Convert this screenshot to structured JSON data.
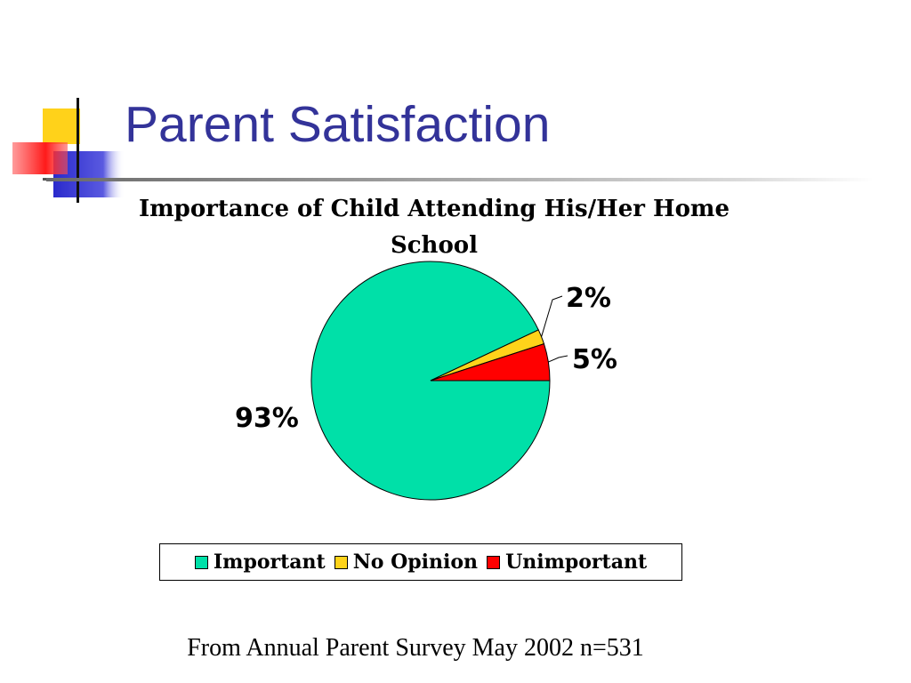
{
  "slide": {
    "title": "Parent Satisfaction",
    "footnote": "From Annual Parent Survey May 2002 n=531"
  },
  "colors": {
    "title": "#333399",
    "important": "#00E0A8",
    "no_opinion": "#FFD31A",
    "unimportant": "#FF0000"
  },
  "chart_data": {
    "type": "pie",
    "title": "Importance of Child Attending His/Her Home School",
    "categories": [
      "Important",
      "No Opinion",
      "Unimportant"
    ],
    "values": [
      93,
      2,
      5
    ],
    "value_labels": [
      "93%",
      "2%",
      "5%"
    ],
    "colors": [
      "#00E0A8",
      "#FFD31A",
      "#FF0000"
    ],
    "legend": {
      "position": "bottom",
      "entries": [
        "Important",
        "No Opinion",
        "Unimportant"
      ]
    }
  }
}
